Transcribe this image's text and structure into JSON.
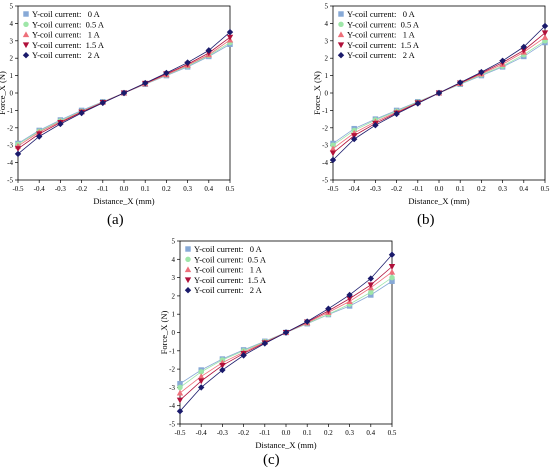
{
  "chart_data": [
    {
      "type": "line",
      "panel_label": "(a)",
      "xlabel": "Distance_X (mm)",
      "ylabel": "Force_X (N)",
      "xlim": [
        -0.5,
        0.5
      ],
      "ylim": [
        -5,
        5
      ],
      "xticks": [
        "-0.5",
        "-0.4",
        "-0.3",
        "-0.2",
        "-0.1",
        "0.0",
        "0.1",
        "0.2",
        "0.3",
        "0.4",
        "0.5"
      ],
      "yticks": [
        "-5",
        "-4",
        "-3",
        "-2",
        "-1",
        "0",
        "1",
        "2",
        "3",
        "4",
        "5"
      ],
      "legend_position": "top-left",
      "x": [
        -0.5,
        -0.4,
        -0.3,
        -0.2,
        -0.1,
        0.0,
        0.1,
        0.2,
        0.3,
        0.4,
        0.5
      ],
      "series": [
        {
          "name": "Y-coil current:   0 A",
          "color": "#87a9d6",
          "marker": "square",
          "values": [
            -2.9,
            -2.15,
            -1.55,
            -1.0,
            -0.5,
            0.0,
            0.5,
            1.0,
            1.5,
            2.1,
            2.8
          ]
        },
        {
          "name": "Y-coil current:  0.5 A",
          "color": "#9ee6a8",
          "marker": "circle",
          "values": [
            -2.95,
            -2.2,
            -1.6,
            -1.05,
            -0.52,
            0.0,
            0.52,
            1.03,
            1.55,
            2.15,
            2.9
          ]
        },
        {
          "name": "Y-coil current:   1 A",
          "color": "#ee6f7a",
          "marker": "triangle-up",
          "values": [
            -3.05,
            -2.25,
            -1.65,
            -1.08,
            -0.53,
            0.0,
            0.53,
            1.05,
            1.6,
            2.2,
            3.05
          ]
        },
        {
          "name": "Y-coil current:  1.5 A",
          "color": "#b0103a",
          "marker": "triangle-down",
          "values": [
            -3.2,
            -2.35,
            -1.7,
            -1.1,
            -0.55,
            0.0,
            0.55,
            1.1,
            1.65,
            2.3,
            3.2
          ]
        },
        {
          "name": "Y-coil current:   2 A",
          "color": "#1a1a6b",
          "marker": "diamond",
          "values": [
            -3.5,
            -2.5,
            -1.78,
            -1.15,
            -0.57,
            0.0,
            0.57,
            1.15,
            1.75,
            2.45,
            3.5
          ]
        }
      ]
    },
    {
      "type": "line",
      "panel_label": "(b)",
      "xlabel": "Distance_X (mm)",
      "ylabel": "Force_X (N)",
      "xlim": [
        -0.5,
        0.5
      ],
      "ylim": [
        -5,
        5
      ],
      "xticks": [
        "-0.5",
        "-0.4",
        "-0.3",
        "-0.2",
        "-0.1",
        "0.0",
        "0.1",
        "0.2",
        "0.3",
        "0.4",
        "0.5"
      ],
      "yticks": [
        "-5",
        "-4",
        "-3",
        "-2",
        "-1",
        "0",
        "1",
        "2",
        "3",
        "4",
        "5"
      ],
      "legend_position": "top-left",
      "x": [
        -0.5,
        -0.4,
        -0.3,
        -0.2,
        -0.1,
        0.0,
        0.1,
        0.2,
        0.3,
        0.4,
        0.5
      ],
      "series": [
        {
          "name": "Y-coil current:   0 A",
          "color": "#87a9d6",
          "marker": "square",
          "values": [
            -2.9,
            -2.05,
            -1.5,
            -1.0,
            -0.5,
            0.0,
            0.5,
            1.0,
            1.5,
            2.1,
            2.9
          ]
        },
        {
          "name": "Y-coil current:  0.5 A",
          "color": "#9ee6a8",
          "marker": "circle",
          "values": [
            -3.0,
            -2.15,
            -1.55,
            -1.05,
            -0.52,
            0.0,
            0.52,
            1.05,
            1.55,
            2.2,
            3.0
          ]
        },
        {
          "name": "Y-coil current:   1 A",
          "color": "#ee6f7a",
          "marker": "triangle-up",
          "values": [
            -3.2,
            -2.3,
            -1.65,
            -1.1,
            -0.55,
            0.0,
            0.55,
            1.1,
            1.65,
            2.35,
            3.2
          ]
        },
        {
          "name": "Y-coil current:  1.5 A",
          "color": "#b0103a",
          "marker": "triangle-down",
          "values": [
            -3.45,
            -2.45,
            -1.75,
            -1.15,
            -0.57,
            0.0,
            0.57,
            1.15,
            1.75,
            2.45,
            3.45
          ]
        },
        {
          "name": "Y-coil current:   2 A",
          "color": "#1a1a6b",
          "marker": "diamond",
          "values": [
            -3.85,
            -2.65,
            -1.85,
            -1.2,
            -0.6,
            0.0,
            0.6,
            1.2,
            1.85,
            2.65,
            3.85
          ]
        }
      ]
    },
    {
      "type": "line",
      "panel_label": "(c)",
      "xlabel": "Distance_X (mm)",
      "ylabel": "Force_X (N)",
      "xlim": [
        -0.5,
        0.5
      ],
      "ylim": [
        -5,
        5
      ],
      "xticks": [
        "-0.5",
        "-0.4",
        "-0.3",
        "-0.2",
        "-0.1",
        "0.0",
        "0.1",
        "0.2",
        "0.3",
        "0.4",
        "0.5"
      ],
      "yticks": [
        "-5",
        "-4",
        "-3",
        "-2",
        "-1",
        "0",
        "1",
        "2",
        "3",
        "4",
        "5"
      ],
      "legend_position": "top-left",
      "x": [
        -0.5,
        -0.4,
        -0.3,
        -0.2,
        -0.1,
        0.0,
        0.1,
        0.2,
        0.3,
        0.4,
        0.5
      ],
      "series": [
        {
          "name": "Y-coil current:   0 A",
          "color": "#87a9d6",
          "marker": "square",
          "values": [
            -2.8,
            -2.05,
            -1.45,
            -0.95,
            -0.48,
            0.0,
            0.48,
            0.98,
            1.45,
            2.05,
            2.8
          ]
        },
        {
          "name": "Y-coil current:  0.5 A",
          "color": "#9ee6a8",
          "marker": "circle",
          "values": [
            -3.0,
            -2.15,
            -1.5,
            -1.0,
            -0.5,
            0.0,
            0.5,
            1.0,
            1.55,
            2.2,
            3.0
          ]
        },
        {
          "name": "Y-coil current:   1 A",
          "color": "#ee6f7a",
          "marker": "triangle-up",
          "values": [
            -3.3,
            -2.4,
            -1.65,
            -1.08,
            -0.53,
            0.0,
            0.53,
            1.1,
            1.7,
            2.45,
            3.3
          ]
        },
        {
          "name": "Y-coil current:  1.5 A",
          "color": "#b0103a",
          "marker": "triangle-down",
          "values": [
            -3.7,
            -2.65,
            -1.8,
            -1.15,
            -0.57,
            0.0,
            0.57,
            1.18,
            1.85,
            2.6,
            3.6
          ]
        },
        {
          "name": "Y-coil current:   2 A",
          "color": "#1a1a6b",
          "marker": "diamond",
          "values": [
            -4.3,
            -3.0,
            -2.05,
            -1.25,
            -0.6,
            0.0,
            0.6,
            1.3,
            2.05,
            2.95,
            4.25
          ]
        }
      ]
    }
  ]
}
